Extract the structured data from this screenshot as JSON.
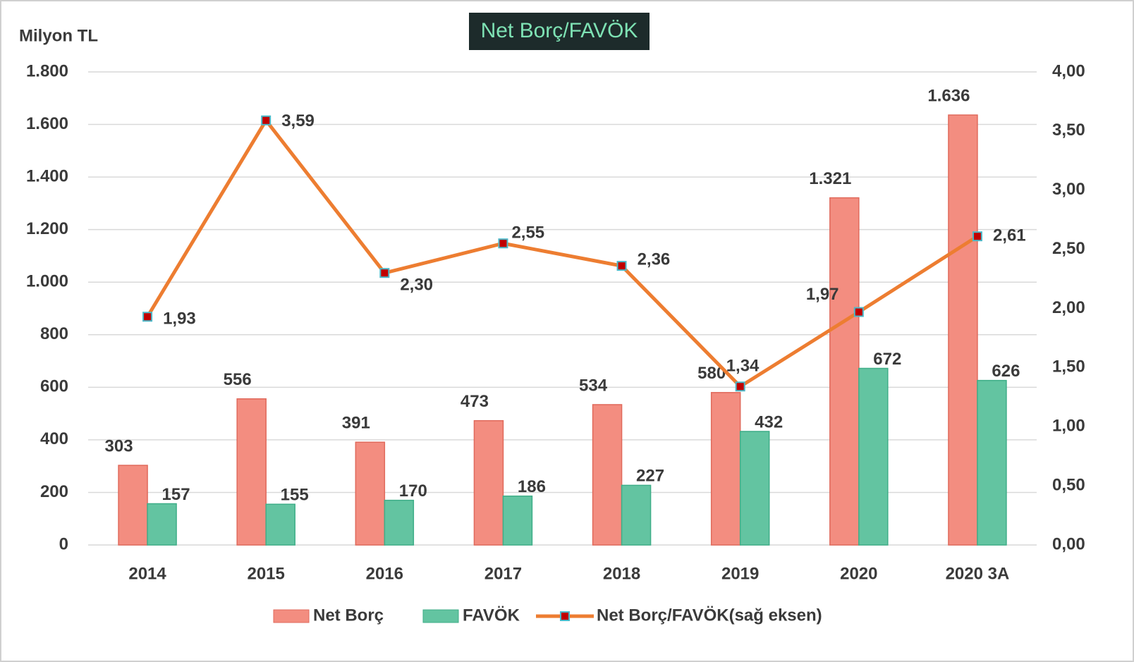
{
  "chart_data": {
    "type": "bar_line",
    "title": "Net Borç/FAVÖK",
    "y_axis_label": "Milyon TL",
    "categories": [
      "2014",
      "2015",
      "2016",
      "2017",
      "2018",
      "2019",
      "2020",
      "2020 3A"
    ],
    "series": [
      {
        "name": "Net Borç",
        "type": "bar",
        "color": "#f38d80",
        "values": [
          303,
          556,
          391,
          473,
          534,
          580,
          1321,
          1636
        ],
        "value_labels": [
          "303",
          "556",
          "391",
          "473",
          "534",
          "580",
          "1.321",
          "1.636"
        ]
      },
      {
        "name": "FAVÖK",
        "type": "bar",
        "color": "#63c4a1",
        "values": [
          157,
          155,
          170,
          186,
          227,
          432,
          672,
          626
        ]
      },
      {
        "name": "Net Borç/FAVÖK(sağ eksen)",
        "type": "line",
        "axis": "y2",
        "color": "#ed7d31",
        "marker_color": "#c00000",
        "values": [
          1.93,
          3.59,
          2.3,
          2.55,
          2.36,
          1.34,
          1.97,
          2.61
        ],
        "value_labels": [
          "1,93",
          "3,59",
          "2,30",
          "2,55",
          "2,36",
          "1,34",
          "1,97",
          "2,61"
        ]
      }
    ],
    "ylim": [
      0,
      1800
    ],
    "yticks": [
      0,
      200,
      400,
      600,
      800,
      {
        "value": 1000,
        "label": "1.000"
      },
      {
        "value": 1200,
        "label": "1.200"
      },
      {
        "value": 1400,
        "label": "1.400"
      },
      {
        "value": 1600,
        "label": "1.600"
      },
      {
        "value": 1800,
        "label": "1.800"
      }
    ],
    "y2lim": [
      0,
      4
    ],
    "y2ticks": [
      {
        "value": 0,
        "label": "0,00"
      },
      {
        "value": 0.5,
        "label": "0,50"
      },
      {
        "value": 1,
        "label": "1,00"
      },
      {
        "value": 1.5,
        "label": "1,50"
      },
      {
        "value": 2,
        "label": "2,00"
      },
      {
        "value": 2.5,
        "label": "2,50"
      },
      {
        "value": 3,
        "label": "3,00"
      },
      {
        "value": 3.5,
        "label": "3,50"
      },
      {
        "value": 4,
        "label": "4,00"
      }
    ],
    "grid": true,
    "legend": "bottom"
  }
}
